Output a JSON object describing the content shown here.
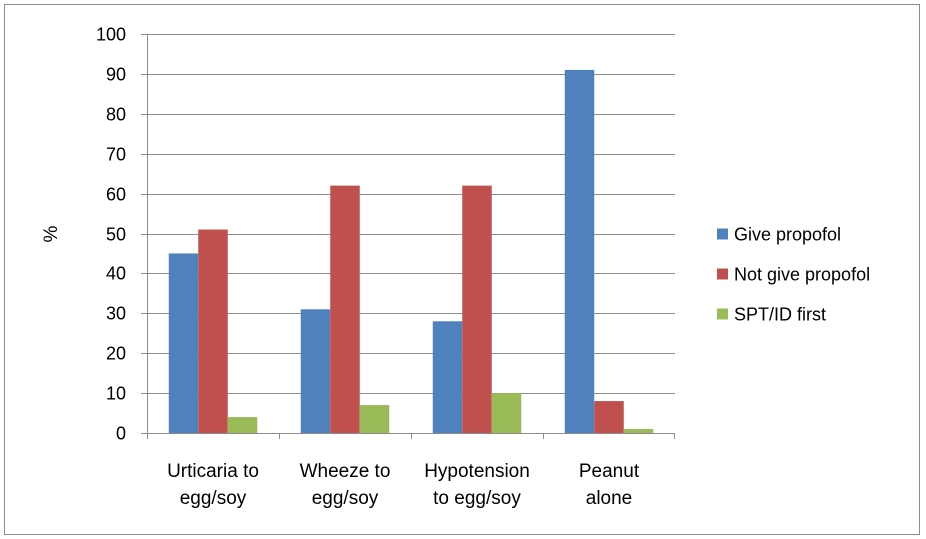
{
  "chart_data": {
    "type": "bar",
    "title": "",
    "xlabel": "",
    "ylabel": "%",
    "ylim": [
      0,
      100
    ],
    "yticks": [
      0,
      10,
      20,
      30,
      40,
      50,
      60,
      70,
      80,
      90,
      100
    ],
    "grid": true,
    "legend_position": "right",
    "categories": [
      [
        "Urticaria to",
        "egg/soy"
      ],
      [
        "Wheeze to",
        "egg/soy"
      ],
      [
        "Hypotension",
        "to egg/soy"
      ],
      [
        "Peanut",
        "alone"
      ]
    ],
    "series": [
      {
        "name": "Give propofol",
        "color": "#4f81bd",
        "values": [
          45,
          31,
          28,
          91
        ]
      },
      {
        "name": "Not give propofol",
        "color": "#c0504d",
        "values": [
          51,
          62,
          62,
          8
        ]
      },
      {
        "name": "SPT/ID first",
        "color": "#9bbb59",
        "values": [
          4,
          7,
          10,
          1
        ]
      }
    ]
  }
}
